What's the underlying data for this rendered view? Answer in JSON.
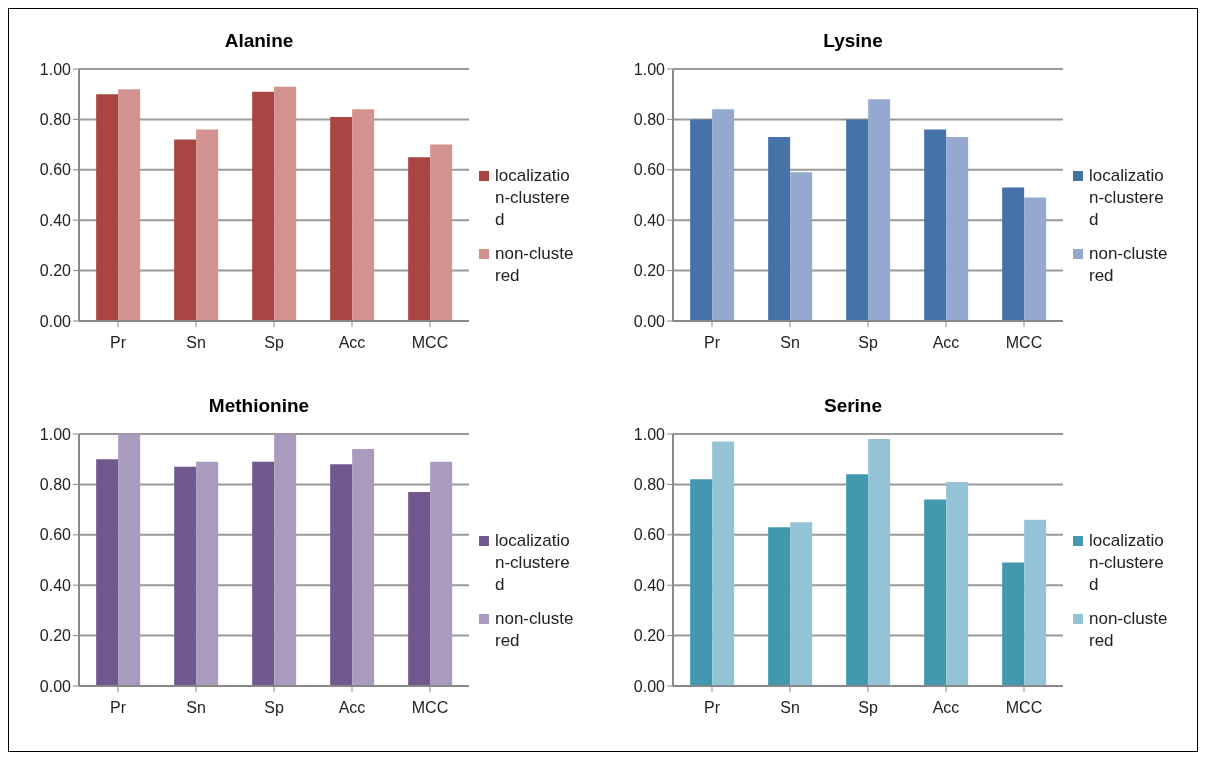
{
  "chart_data": [
    {
      "type": "bar",
      "title": "Alanine",
      "categories": [
        "Pr",
        "Sn",
        "Sp",
        "Acc",
        "MCC"
      ],
      "ylim": [
        0,
        1
      ],
      "yticks": [
        {
          "value": 0,
          "label": "0.00"
        },
        {
          "value": 0.2,
          "label": "0.20"
        },
        {
          "value": 0.4,
          "label": "0.40"
        },
        {
          "value": 0.6,
          "label": "0.60"
        },
        {
          "value": 0.8,
          "label": "0.80"
        },
        {
          "value": 1,
          "label": "1.00"
        }
      ],
      "grid": "y",
      "legend": "right",
      "series": [
        {
          "name": "localization-clustered",
          "color": "#a94543",
          "values": [
            0.9,
            0.72,
            0.91,
            0.81,
            0.65
          ]
        },
        {
          "name": "non-clustered",
          "color": "#d29290",
          "values": [
            0.92,
            0.76,
            0.93,
            0.84,
            0.7
          ]
        }
      ]
    },
    {
      "type": "bar",
      "title": "Lysine",
      "categories": [
        "Pr",
        "Sn",
        "Sp",
        "Acc",
        "MCC"
      ],
      "ylim": [
        0,
        1
      ],
      "yticks": [
        {
          "value": 0,
          "label": "0.00"
        },
        {
          "value": 0.2,
          "label": "0.20"
        },
        {
          "value": 0.4,
          "label": "0.40"
        },
        {
          "value": 0.6,
          "label": "0.60"
        },
        {
          "value": 0.8,
          "label": "0.80"
        },
        {
          "value": 1,
          "label": "1.00"
        }
      ],
      "grid": "y",
      "legend": "right",
      "series": [
        {
          "name": "localization-clustered",
          "color": "#4572a7",
          "values": [
            0.8,
            0.73,
            0.8,
            0.76,
            0.53
          ]
        },
        {
          "name": "non-clustered",
          "color": "#95a9d0",
          "values": [
            0.84,
            0.59,
            0.88,
            0.73,
            0.49
          ]
        }
      ]
    },
    {
      "type": "bar",
      "title": "Methionine",
      "categories": [
        "Pr",
        "Sn",
        "Sp",
        "Acc",
        "MCC"
      ],
      "ylim": [
        0,
        1
      ],
      "yticks": [
        {
          "value": 0,
          "label": "0.00"
        },
        {
          "value": 0.2,
          "label": "0.20"
        },
        {
          "value": 0.4,
          "label": "0.40"
        },
        {
          "value": 0.6,
          "label": "0.60"
        },
        {
          "value": 0.8,
          "label": "0.80"
        },
        {
          "value": 1,
          "label": "1.00"
        }
      ],
      "grid": "y",
      "legend": "right",
      "series": [
        {
          "name": "localization-clustered",
          "color": "#71588f",
          "values": [
            0.9,
            0.87,
            0.89,
            0.88,
            0.77
          ]
        },
        {
          "name": "non-clustered",
          "color": "#a99bbd",
          "values": [
            1.0,
            0.89,
            1.0,
            0.94,
            0.89
          ]
        }
      ]
    },
    {
      "type": "bar",
      "title": "Serine",
      "categories": [
        "Pr",
        "Sn",
        "Sp",
        "Acc",
        "MCC"
      ],
      "ylim": [
        0,
        1
      ],
      "yticks": [
        {
          "value": 0,
          "label": "0.00"
        },
        {
          "value": 0.2,
          "label": "0.20"
        },
        {
          "value": 0.4,
          "label": "0.40"
        },
        {
          "value": 0.6,
          "label": "0.60"
        },
        {
          "value": 0.8,
          "label": "0.80"
        },
        {
          "value": 1,
          "label": "1.00"
        }
      ],
      "grid": "y",
      "legend": "right",
      "series": [
        {
          "name": "localization-clustered",
          "color": "#4198af",
          "values": [
            0.82,
            0.63,
            0.84,
            0.74,
            0.49
          ]
        },
        {
          "name": "non-clustered",
          "color": "#93c3d5",
          "values": [
            0.97,
            0.65,
            0.98,
            0.81,
            0.66
          ]
        }
      ]
    }
  ]
}
